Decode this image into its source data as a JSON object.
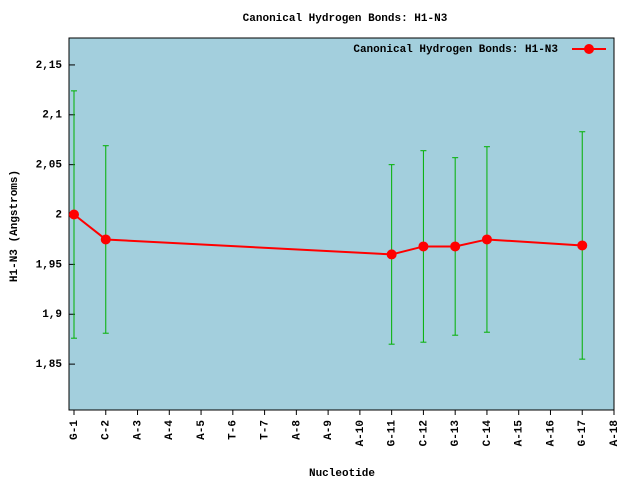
{
  "chart_data": {
    "type": "line",
    "title": "Canonical Hydrogen Bonds: H1-N3",
    "xlabel": "Nucleotide",
    "ylabel": "H1-N3 (Angstroms)",
    "categories": [
      "G-1",
      "C-2",
      "A-3",
      "A-4",
      "A-5",
      "T-6",
      "T-7",
      "A-8",
      "A-9",
      "A-10",
      "G-11",
      "C-12",
      "G-13",
      "C-14",
      "A-15",
      "A-16",
      "G-17",
      "A-18"
    ],
    "series": [
      {
        "name": "Canonical Hydrogen Bonds: H1-N3",
        "color": "#ff0000",
        "error_color": "#00b000",
        "x": [
          "G-1",
          "C-2",
          "G-11",
          "C-12",
          "G-13",
          "C-14",
          "G-17"
        ],
        "values": [
          2.0,
          1.975,
          1.96,
          1.968,
          1.968,
          1.975,
          1.969
        ],
        "errors": [
          0.124,
          0.094,
          0.09,
          0.096,
          0.089,
          0.093,
          0.114
        ]
      }
    ],
    "ylim": [
      1.804,
      2.177
    ],
    "yticks": [
      {
        "value": 1.85,
        "label": "1,85"
      },
      {
        "value": 1.9,
        "label": "1,9"
      },
      {
        "value": 1.95,
        "label": "1,95"
      },
      2,
      {
        "value": 2.05,
        "label": "2,05"
      },
      {
        "value": 2.1,
        "label": "2,1"
      },
      {
        "value": 2.15,
        "label": "2,15"
      }
    ],
    "background": "#a3cfdd",
    "legend": "top-right"
  }
}
